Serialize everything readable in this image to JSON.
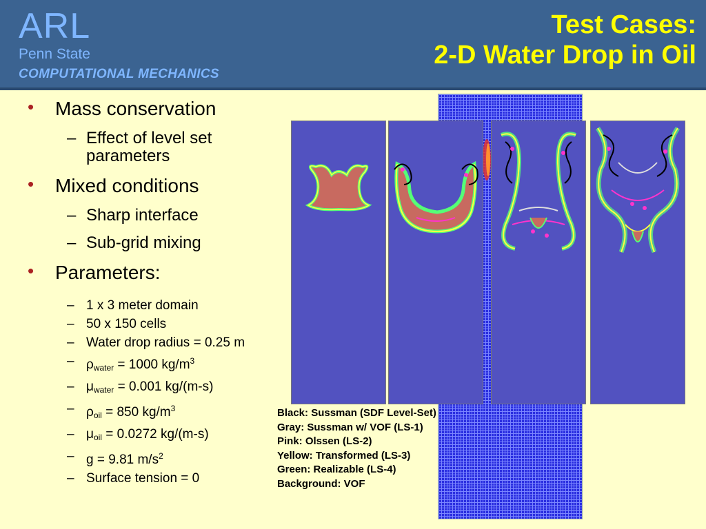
{
  "header": {
    "logo": "ARL",
    "subtitle": "Penn State",
    "division": "COMPUTATIONAL MECHANICS",
    "title_line1": "Test Cases:",
    "title_line2": "2-D Water Drop in Oil"
  },
  "bullets": {
    "b1": "Mass conservation",
    "b1_s1": "Effect of level set parameters",
    "b2": "Mixed conditions",
    "b2_s1": "Sharp interface",
    "b2_s2": "Sub-grid mixing",
    "b3": "Parameters:",
    "p1": "1 x 3 meter domain",
    "p2": "50 x 150 cells",
    "p3": "Water drop radius = 0.25 m",
    "p4_sym": "ρ",
    "p4_sub": "water",
    "p4_rest": " = 1000 kg/m",
    "p4_sup": "3",
    "p5_sym": "μ",
    "p5_sub": "water",
    "p5_rest": " = 0.001 kg/(m-s)",
    "p6_sym": "ρ",
    "p6_sub": "oil",
    "p6_rest": " = 850 kg/m",
    "p6_sup": "3",
    "p7_sym": "μ",
    "p7_sub": "oil",
    "p7_rest": " = 0.0272 kg/(m-s)",
    "p8": "g = 9.81 m/s",
    "p8_sup": "2",
    "p9": "Surface tension = 0"
  },
  "legend": {
    "l1": "Black:  Sussman (SDF Level-Set)",
    "l2": "Gray:  Sussman w/ VOF (LS-1)",
    "l3": "Pink:  Olssen (LS-2)",
    "l4": "Yellow:  Transformed (LS-3)",
    "l5": "Green:  Realizable (LS-4)",
    "l6": "Background:  VOF"
  },
  "colors": {
    "header_bg": "#3b6391",
    "title": "#ffff00",
    "logo": "#7fb6ff",
    "slide_bg": "#ffffcc",
    "bullet": "#aa2222"
  }
}
